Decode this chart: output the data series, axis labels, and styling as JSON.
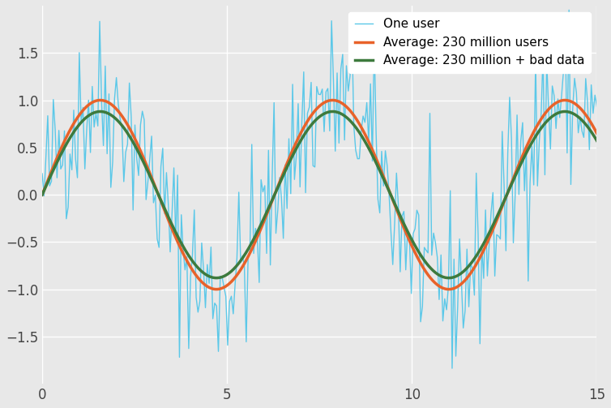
{
  "xlim": [
    0,
    15
  ],
  "ylim": [
    -2,
    2
  ],
  "xticks": [
    0,
    5,
    10,
    15
  ],
  "yticks": [
    -1.5,
    -1.0,
    -0.5,
    0.0,
    0.5,
    1.0,
    1.5
  ],
  "bg_color": "#e8e8e8",
  "grid_color": "white",
  "line1_color": "#5bc8e8",
  "line2_color": "#e8622a",
  "line3_color": "#3d7a3d",
  "line1_label": "One user",
  "line2_label": "Average: 230 million users",
  "line3_label": "Average: 230 million + bad data",
  "line1_lw": 1.0,
  "line2_lw": 2.5,
  "line3_lw": 2.5,
  "noise_seed": 42,
  "num_points_noisy": 300,
  "num_points_smooth": 1000,
  "amplitude_smooth": 1.0,
  "amplitude_bad": 0.88,
  "legend_loc": "upper right",
  "figsize": [
    7.54,
    5.03
  ],
  "dpi": 100
}
